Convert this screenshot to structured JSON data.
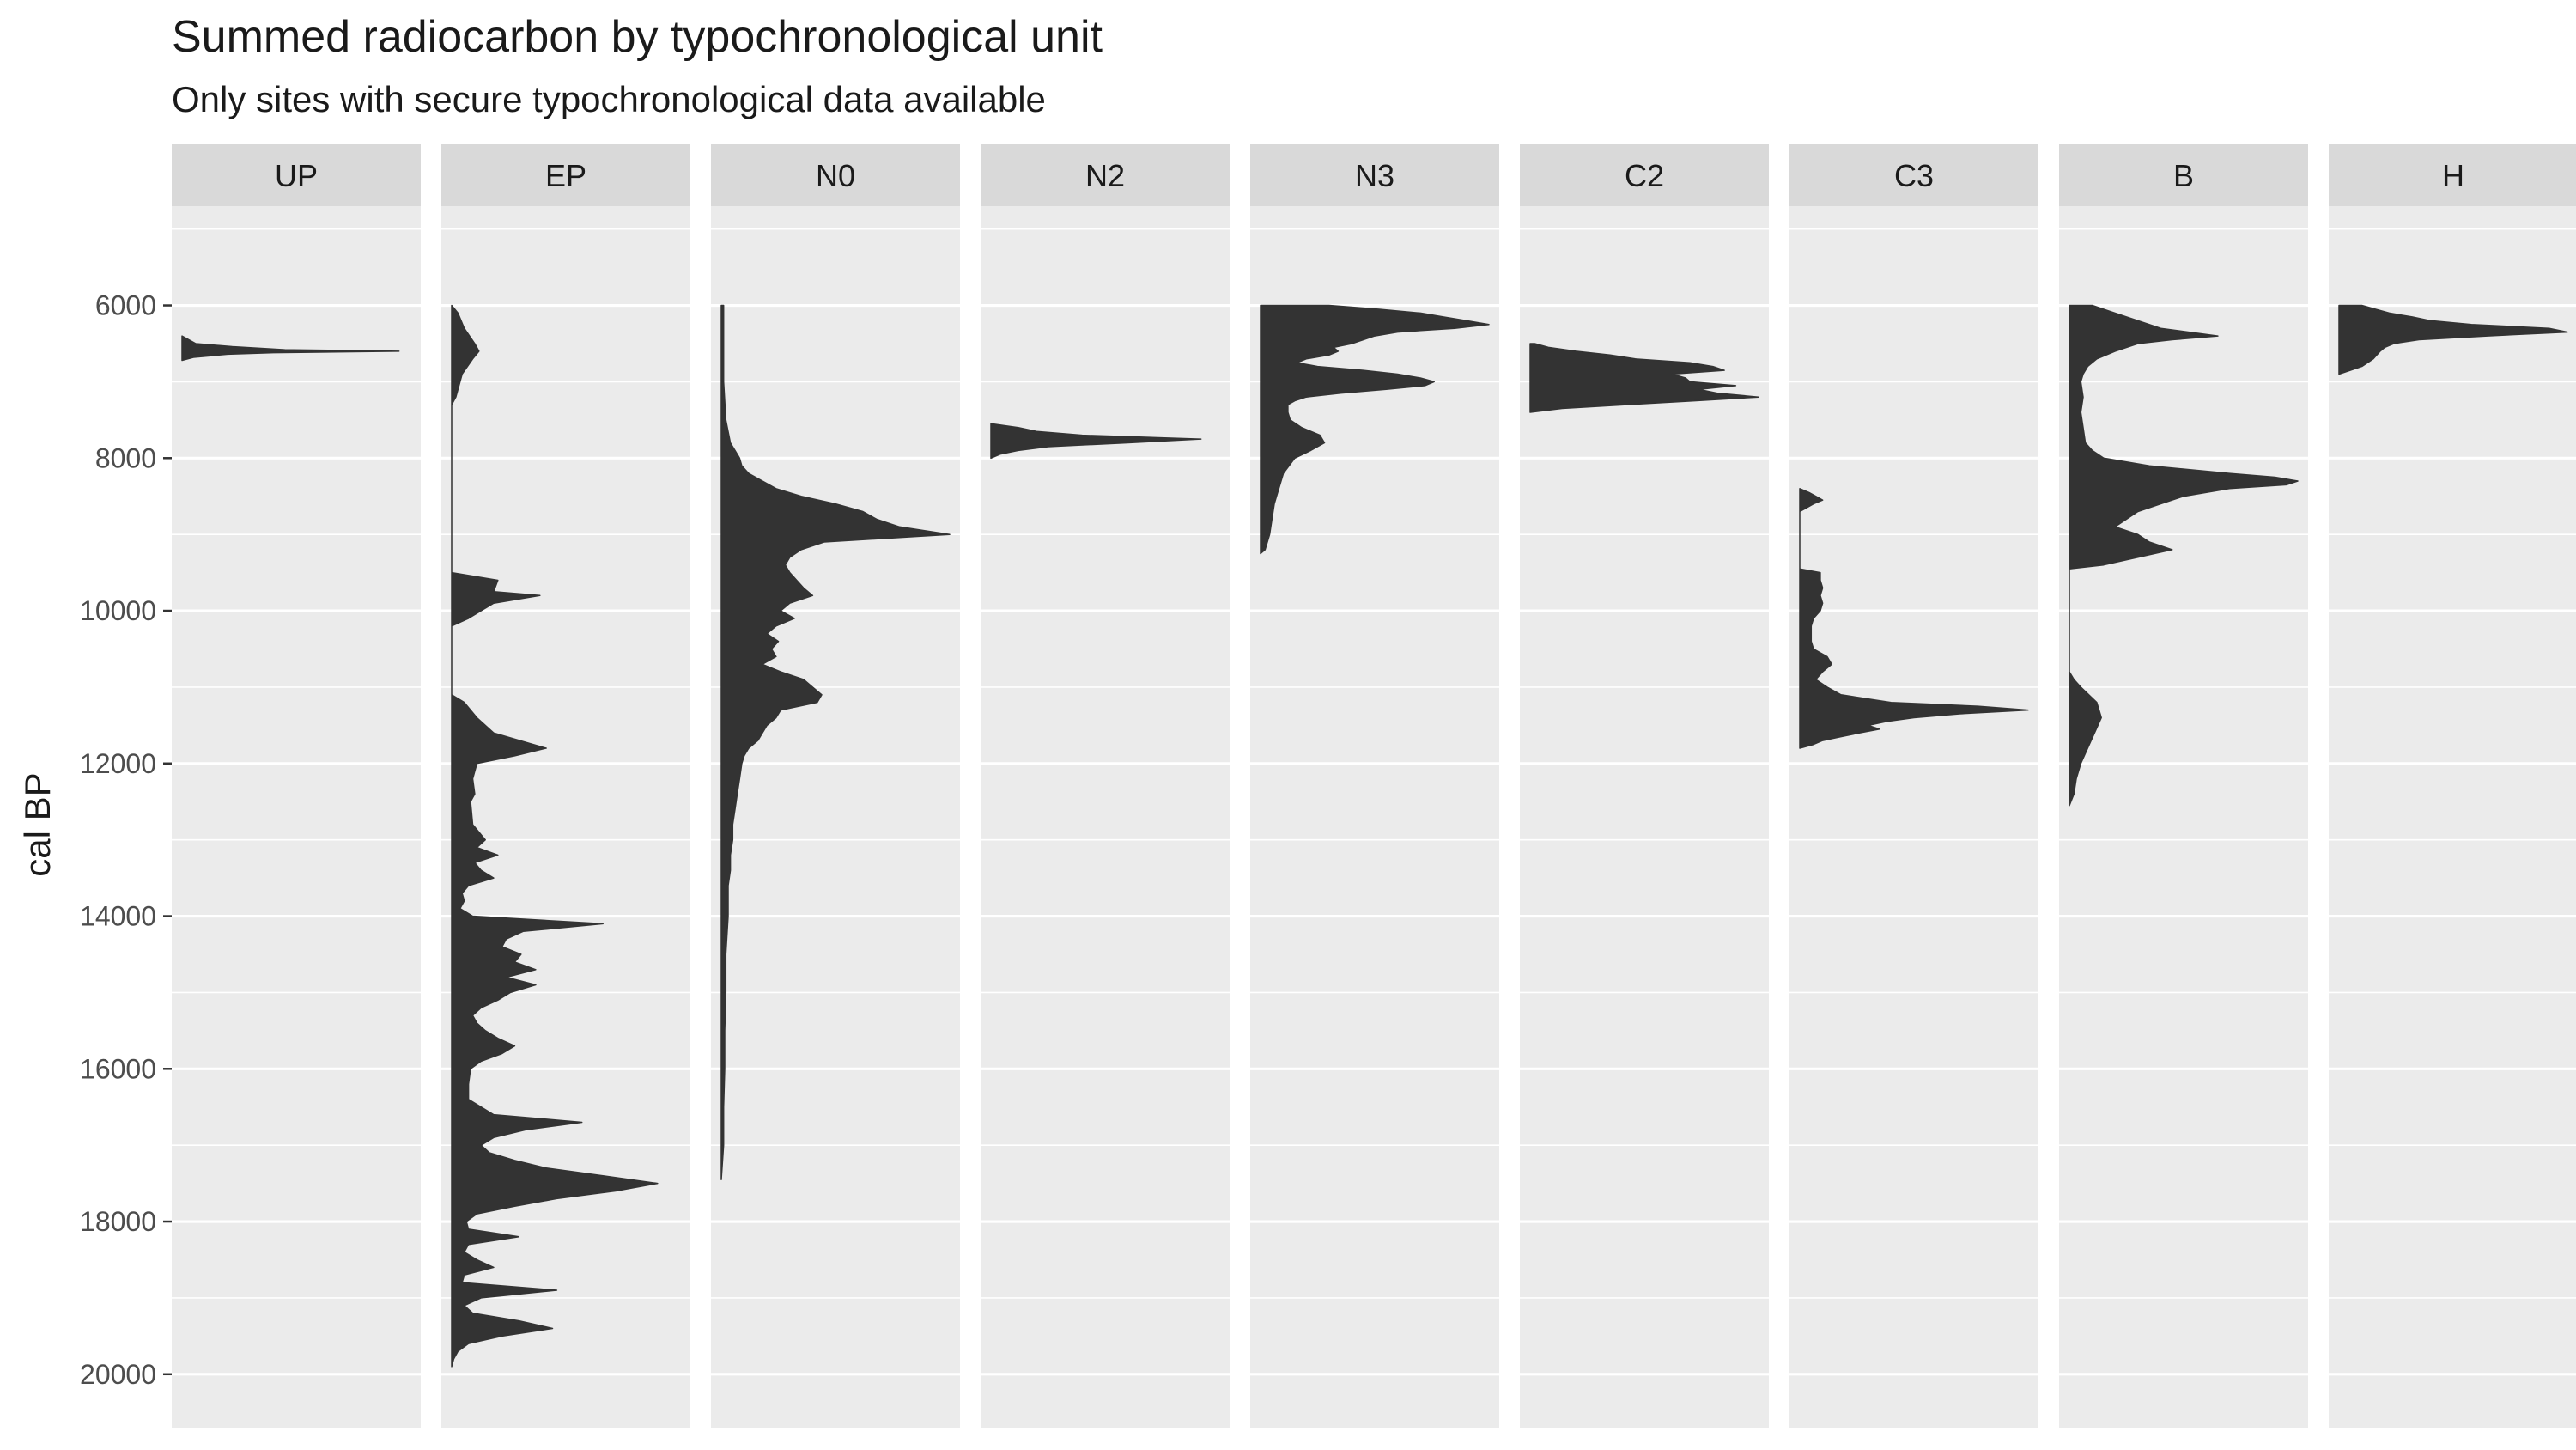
{
  "chart_data": {
    "type": "area",
    "title": "Summed radiocarbon by typochronological unit",
    "subtitle": "Only sites with secure typochronological data available",
    "xlabel": "",
    "ylabel": "cal BP",
    "ylim": [
      20700,
      4700
    ],
    "y_reversed": true,
    "grid": true,
    "y_ticks": [
      6000,
      8000,
      10000,
      12000,
      14000,
      16000,
      18000,
      20000
    ],
    "y_tick_labels": [
      "6000",
      "8000",
      "10000",
      "12000",
      "14000",
      "16000",
      "18000",
      "20000"
    ],
    "value_unit": "relative summed probability (0-1)",
    "colors": {
      "panel_bg": "#ebebeb",
      "strip_bg": "#d9d9d9",
      "grid": "#ffffff",
      "fill": "#333333",
      "text": "#1a1a1a",
      "tick_text": "#4d4d4d"
    },
    "panels": [
      {
        "name": "UP",
        "dates": [
          6400,
          6500,
          6540,
          6580,
          6600,
          6620,
          6640,
          6680,
          6720
        ],
        "values": [
          0,
          0.06,
          0.22,
          0.45,
          0.95,
          0.4,
          0.2,
          0.05,
          0
        ]
      },
      {
        "name": "EP",
        "dates": [
          6000,
          6100,
          6300,
          6500,
          6600,
          6700,
          6900,
          7200,
          7300,
          9500,
          9600,
          9750,
          9800,
          9900,
          10000,
          10100,
          10200,
          11100,
          11200,
          11400,
          11600,
          11800,
          11900,
          12000,
          12200,
          12400,
          12500,
          12800,
          13000,
          13100,
          13200,
          13300,
          13400,
          13500,
          13600,
          13700,
          13800,
          13900,
          14000,
          14100,
          14200,
          14300,
          14400,
          14500,
          14600,
          14700,
          14800,
          14900,
          15000,
          15100,
          15200,
          15300,
          15400,
          15500,
          15600,
          15700,
          15800,
          15900,
          16000,
          16200,
          16400,
          16600,
          16700,
          16800,
          16900,
          17000,
          17100,
          17200,
          17300,
          17400,
          17500,
          17600,
          17700,
          17800,
          17900,
          18000,
          18100,
          18200,
          18300,
          18400,
          18500,
          18600,
          18700,
          18800,
          18900,
          19000,
          19100,
          19200,
          19300,
          19400,
          19500,
          19600,
          19700,
          19800,
          19900
        ],
        "values": [
          0,
          0.03,
          0.06,
          0.11,
          0.13,
          0.1,
          0.05,
          0.02,
          0,
          0,
          0.22,
          0.2,
          0.42,
          0.2,
          0.14,
          0.08,
          0,
          0,
          0.06,
          0.12,
          0.2,
          0.45,
          0.3,
          0.12,
          0.1,
          0.11,
          0.09,
          0.1,
          0.16,
          0.12,
          0.22,
          0.11,
          0.14,
          0.2,
          0.08,
          0.05,
          0.06,
          0.04,
          0.1,
          0.72,
          0.34,
          0.26,
          0.24,
          0.33,
          0.3,
          0.4,
          0.26,
          0.4,
          0.28,
          0.22,
          0.14,
          0.1,
          0.12,
          0.16,
          0.22,
          0.3,
          0.24,
          0.14,
          0.09,
          0.08,
          0.08,
          0.2,
          0.62,
          0.35,
          0.2,
          0.14,
          0.18,
          0.3,
          0.45,
          0.72,
          0.98,
          0.78,
          0.5,
          0.3,
          0.12,
          0.07,
          0.08,
          0.32,
          0.08,
          0.06,
          0.12,
          0.2,
          0.06,
          0.05,
          0.5,
          0.14,
          0.06,
          0.1,
          0.32,
          0.48,
          0.24,
          0.08,
          0.03,
          0.01,
          0
        ],
        "max_fraction": 0.92
      },
      {
        "name": "N0",
        "dates": [
          6000,
          6500,
          7000,
          7500,
          7800,
          7900,
          8000,
          8100,
          8200,
          8300,
          8400,
          8500,
          8600,
          8700,
          8800,
          8900,
          9000,
          9100,
          9200,
          9300,
          9400,
          9500,
          9600,
          9700,
          9800,
          9900,
          10000,
          10100,
          10200,
          10300,
          10400,
          10500,
          10600,
          10700,
          10800,
          10900,
          11000,
          11100,
          11200,
          11300,
          11400,
          11500,
          11600,
          11700,
          11800,
          11900,
          12000,
          12200,
          12400,
          12600,
          12800,
          13000,
          13200,
          13400,
          13600,
          13800,
          14000,
          14500,
          15000,
          15500,
          16000,
          16500,
          17000,
          17450
        ],
        "values": [
          0.01,
          0.01,
          0.01,
          0.02,
          0.04,
          0.06,
          0.08,
          0.09,
          0.12,
          0.18,
          0.24,
          0.35,
          0.5,
          0.62,
          0.68,
          0.78,
          1.0,
          0.45,
          0.35,
          0.3,
          0.28,
          0.3,
          0.33,
          0.36,
          0.4,
          0.3,
          0.26,
          0.32,
          0.24,
          0.2,
          0.25,
          0.22,
          0.24,
          0.18,
          0.26,
          0.36,
          0.4,
          0.44,
          0.42,
          0.26,
          0.24,
          0.2,
          0.18,
          0.16,
          0.12,
          0.1,
          0.09,
          0.08,
          0.07,
          0.06,
          0.05,
          0.05,
          0.04,
          0.04,
          0.03,
          0.03,
          0.03,
          0.02,
          0.02,
          0.015,
          0.015,
          0.01,
          0.01,
          0
        ]
      },
      {
        "name": "N2",
        "dates": [
          7550,
          7600,
          7650,
          7700,
          7750,
          7800,
          7850,
          7900,
          7950,
          8000
        ],
        "values": [
          0,
          0.12,
          0.2,
          0.4,
          0.92,
          0.6,
          0.25,
          0.12,
          0.04,
          0
        ]
      },
      {
        "name": "N3",
        "dates": [
          6000,
          6050,
          6100,
          6150,
          6200,
          6250,
          6300,
          6350,
          6400,
          6450,
          6500,
          6550,
          6600,
          6650,
          6700,
          6750,
          6800,
          6850,
          6900,
          6950,
          7000,
          7050,
          7100,
          7150,
          7200,
          7250,
          7300,
          7400,
          7500,
          7600,
          7700,
          7800,
          7900,
          8000,
          8200,
          8400,
          8600,
          8800,
          9000,
          9200,
          9250
        ],
        "values": [
          0.3,
          0.52,
          0.7,
          0.8,
          0.9,
          1.0,
          0.85,
          0.6,
          0.5,
          0.45,
          0.4,
          0.32,
          0.34,
          0.3,
          0.2,
          0.16,
          0.25,
          0.45,
          0.6,
          0.7,
          0.76,
          0.72,
          0.55,
          0.35,
          0.2,
          0.15,
          0.12,
          0.12,
          0.13,
          0.18,
          0.26,
          0.28,
          0.22,
          0.15,
          0.1,
          0.08,
          0.06,
          0.05,
          0.04,
          0.02,
          0
        ]
      },
      {
        "name": "C2",
        "dates": [
          6500,
          6550,
          6600,
          6650,
          6700,
          6750,
          6800,
          6850,
          6900,
          6950,
          7000,
          7050,
          7100,
          7150,
          7200,
          7250,
          7300,
          7350,
          7400
        ],
        "values": [
          0.02,
          0.08,
          0.2,
          0.35,
          0.46,
          0.7,
          0.8,
          0.85,
          0.62,
          0.68,
          0.7,
          0.9,
          0.74,
          0.82,
          1.0,
          0.72,
          0.42,
          0.14,
          0
        ]
      },
      {
        "name": "C3",
        "dates": [
          8400,
          8450,
          8500,
          8550,
          8600,
          8650,
          8700,
          9450,
          9500,
          9600,
          9700,
          9800,
          9900,
          10000,
          10100,
          10200,
          10400,
          10500,
          10600,
          10700,
          10800,
          10900,
          11000,
          11100,
          11200,
          11250,
          11300,
          11350,
          11400,
          11450,
          11500,
          11550,
          11600,
          11650,
          11700,
          11750,
          11800
        ],
        "values": [
          0,
          0.04,
          0.07,
          0.1,
          0.06,
          0.03,
          0,
          0,
          0.09,
          0.09,
          0.1,
          0.09,
          0.1,
          0.09,
          0.06,
          0.05,
          0.05,
          0.06,
          0.12,
          0.14,
          0.1,
          0.07,
          0.12,
          0.18,
          0.4,
          0.78,
          1.0,
          0.7,
          0.5,
          0.38,
          0.3,
          0.35,
          0.26,
          0.18,
          0.1,
          0.06,
          0
        ]
      },
      {
        "name": "B",
        "dates": [
          6000,
          6100,
          6200,
          6300,
          6400,
          6450,
          6500,
          6600,
          6700,
          6800,
          6900,
          7000,
          7200,
          7400,
          7600,
          7800,
          7900,
          8000,
          8100,
          8200,
          8250,
          8300,
          8350,
          8400,
          8500,
          8600,
          8700,
          8800,
          8900,
          9000,
          9100,
          9200,
          9300,
          9400,
          9450,
          10800,
          10900,
          11000,
          11200,
          11400,
          11600,
          11800,
          12000,
          12200,
          12400,
          12550
        ],
        "values": [
          0.1,
          0.2,
          0.3,
          0.4,
          0.65,
          0.45,
          0.3,
          0.2,
          0.12,
          0.08,
          0.06,
          0.05,
          0.06,
          0.05,
          0.06,
          0.07,
          0.1,
          0.15,
          0.35,
          0.7,
          0.9,
          1.0,
          0.95,
          0.7,
          0.5,
          0.4,
          0.3,
          0.25,
          0.2,
          0.3,
          0.35,
          0.45,
          0.3,
          0.15,
          0,
          0,
          0.02,
          0.05,
          0.12,
          0.14,
          0.11,
          0.08,
          0.05,
          0.03,
          0.02,
          0
        ]
      },
      {
        "name": "H",
        "dates": [
          6000,
          6050,
          6100,
          6150,
          6200,
          6250,
          6300,
          6350,
          6400,
          6450,
          6500,
          6550,
          6600,
          6700,
          6800,
          6850,
          6900
        ],
        "values": [
          0.1,
          0.16,
          0.22,
          0.32,
          0.4,
          0.58,
          0.92,
          1.0,
          0.65,
          0.35,
          0.24,
          0.2,
          0.18,
          0.15,
          0.1,
          0.05,
          0
        ]
      }
    ]
  }
}
